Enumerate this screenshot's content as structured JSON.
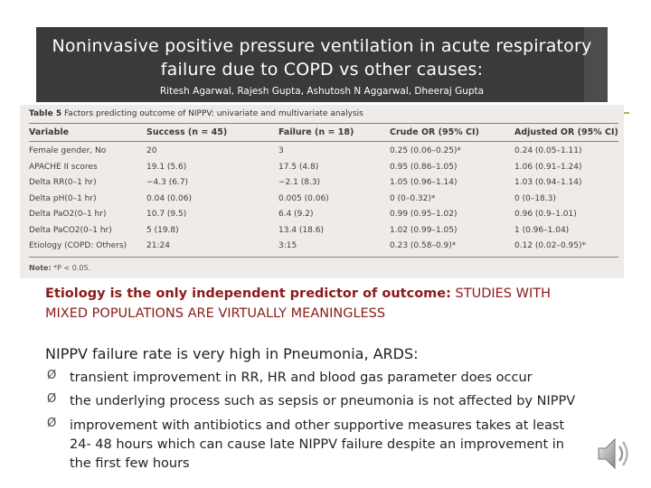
{
  "header": {
    "title_line1": "Noninvasive positive pressure ventilation in acute respiratory",
    "title_line2": "failure  due to COPD vs other causes:",
    "authors": "Ritesh Agarwal, Rajesh Gupta, Ashutosh N Aggarwal, Dheeraj Gupta"
  },
  "table": {
    "caption_bold": "Table 5",
    "caption_rest": " Factors predicting outcome of NIPPV: univariate and multivariate analysis",
    "columns": [
      "Variable",
      "Success (n = 45)",
      "Failure (n = 18)",
      "Crude OR (95% CI)",
      "Adjusted OR (95% CI)"
    ],
    "rows": [
      [
        "Female gender, No",
        "20",
        "3",
        "0.25 (0.06–0.25)*",
        "0.24 (0.05–1.11)"
      ],
      [
        "APACHE II scores",
        "19.1 (5.6)",
        "17.5 (4.8)",
        "0.95 (0.86–1.05)",
        "1.06 (0.91–1.24)"
      ],
      [
        "Delta RR(0–1 hr)",
        "−4.3 (6.7)",
        "−2.1 (8.3)",
        "1.05 (0.96–1.14)",
        "1.03 (0.94–1.14)"
      ],
      [
        "Delta pH(0–1 hr)",
        "0.04 (0.06)",
        "0.005 (0.06)",
        "0 (0–0.32)*",
        "0 (0–18.3)"
      ],
      [
        "Delta PaO2(0–1 hr)",
        "10.7 (9.5)",
        "6.4 (9.2)",
        "0.99 (0.95–1.02)",
        "0.96 (0.9–1.01)"
      ],
      [
        "Delta PaCO2(0–1 hr)",
        "5 (19.8)",
        "13.4 (18.6)",
        "1.02 (0.99–1.05)",
        "1 (0.96–1.04)"
      ],
      [
        "Etiology (COPD: Others)",
        "21:24",
        "3:15",
        "0.23 (0.58–0.9)*",
        "0.12 (0.02–0.95)*"
      ]
    ],
    "note_bold": "Note:",
    "note_rest": " *P < 0.05."
  },
  "body": {
    "para1_bold": "Etiology is the only independent predictor of outcome:",
    "para1_rest_line1": " STUDIES WITH",
    "para1_line2": "MIXED POPULATIONS ARE VIRTUALLY MEANINGLESS",
    "para2": "NIPPV failure rate is very high in Pneumonia, ARDS:",
    "bullets": [
      [
        "transient improvement in RR, HR and blood gas parameter does occur"
      ],
      [
        "the underlying process such as sepsis or pneumonia is not affected by NIPPV"
      ],
      [
        "improvement with antibiotics and other supportive measures takes at least",
        "24- 48 hours which can cause late NIPPV failure despite an improvement in",
        "the first few hours"
      ]
    ],
    "bullet_marker": "Ø"
  },
  "icons": {
    "audio": "speaker-icon"
  },
  "colors": {
    "title_bg": "#3a3a3a",
    "para1_text": "#8b1a1a",
    "accent": "#8cc63f"
  }
}
